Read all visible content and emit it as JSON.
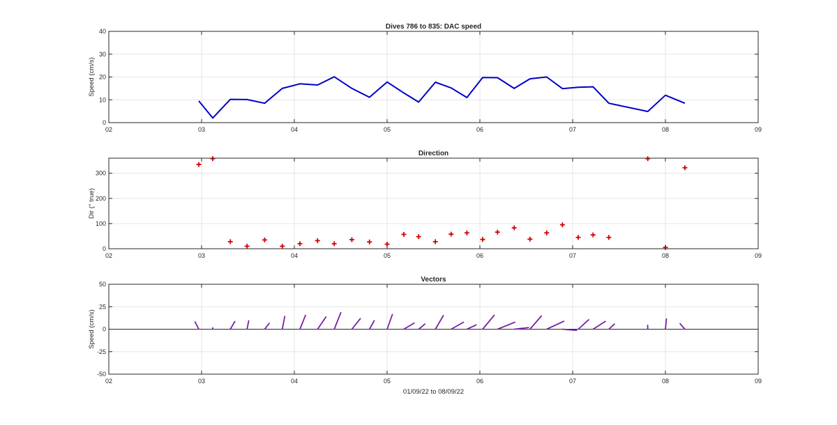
{
  "chart_data": [
    {
      "type": "line",
      "title": "Dives 786 to 835: DAC speed",
      "xlabel": "",
      "ylabel": "Speed (cm/s)",
      "xlim": [
        2,
        9
      ],
      "ylim": [
        0,
        40
      ],
      "xticks": [
        "02",
        "03",
        "04",
        "05",
        "06",
        "07",
        "08",
        "09"
      ],
      "yticks": [
        "0",
        "10",
        "20",
        "30",
        "40"
      ],
      "grid": true,
      "color": "#0000c8",
      "x": [
        2.97,
        3.12,
        3.31,
        3.49,
        3.68,
        3.87,
        4.06,
        4.25,
        4.43,
        4.62,
        4.81,
        5.0,
        5.18,
        5.34,
        5.52,
        5.69,
        5.86,
        6.03,
        6.19,
        6.37,
        6.54,
        6.72,
        6.89,
        7.06,
        7.22,
        7.39,
        7.81,
        8.0,
        8.21
      ],
      "y": [
        9.5,
        2.0,
        10.2,
        10.1,
        8.5,
        15.0,
        17.0,
        16.5,
        20.1,
        15.0,
        11.1,
        17.8,
        13.0,
        9.0,
        17.7,
        15.2,
        11.0,
        19.8,
        19.7,
        15.0,
        19.2,
        20.0,
        14.9,
        15.5,
        15.7,
        8.5,
        4.9,
        12.0,
        8.5
      ]
    },
    {
      "type": "scatter",
      "title": "Direction",
      "xlabel": "",
      "ylabel": "Dir (° true)",
      "xlim": [
        2,
        9
      ],
      "ylim": [
        0,
        360
      ],
      "xticks": [
        "02",
        "03",
        "04",
        "05",
        "06",
        "07",
        "08",
        "09"
      ],
      "yticks": [
        "0",
        "100",
        "200",
        "300"
      ],
      "grid": true,
      "color": "#d40000",
      "marker": "+",
      "x": [
        2.97,
        3.12,
        3.31,
        3.49,
        3.68,
        3.87,
        4.06,
        4.25,
        4.43,
        4.62,
        4.81,
        5.0,
        5.18,
        5.34,
        5.52,
        5.69,
        5.86,
        6.03,
        6.19,
        6.37,
        6.54,
        6.72,
        6.89,
        7.06,
        7.22,
        7.39,
        7.81,
        8.0,
        8.21
      ],
      "y": [
        335,
        358,
        28,
        10,
        35,
        10,
        20,
        32,
        20,
        36,
        27,
        18,
        57,
        48,
        28,
        58,
        63,
        37,
        66,
        83,
        38,
        63,
        95,
        45,
        55,
        45,
        358,
        5,
        322
      ]
    },
    {
      "type": "line",
      "title": "Vectors",
      "xlabel": "01/09/22 to 08/09/22",
      "ylabel": "Speed (cm/s)",
      "xlim": [
        2,
        9
      ],
      "ylim": [
        -50,
        50
      ],
      "xticks": [
        "02",
        "03",
        "04",
        "05",
        "06",
        "07",
        "08",
        "09"
      ],
      "yticks": [
        "-50",
        "-25",
        "0",
        "25",
        "50"
      ],
      "grid": true,
      "color": "#7a1fa8",
      "x": [
        2.97,
        3.12,
        3.31,
        3.49,
        3.68,
        3.87,
        4.06,
        4.25,
        4.43,
        4.62,
        4.81,
        5.0,
        5.18,
        5.34,
        5.52,
        5.69,
        5.86,
        6.03,
        6.19,
        6.37,
        6.54,
        6.72,
        6.89,
        7.06,
        7.22,
        7.39,
        7.81,
        8.0,
        8.21
      ],
      "speed": [
        9.5,
        2.0,
        10.2,
        10.1,
        8.5,
        15.0,
        17.0,
        16.5,
        20.1,
        15.0,
        11.1,
        17.8,
        13.0,
        9.0,
        17.7,
        15.2,
        11.0,
        19.8,
        19.7,
        15.0,
        19.2,
        20.0,
        14.9,
        15.5,
        15.7,
        8.5,
        4.9,
        12.0,
        8.5
      ],
      "direction": [
        335,
        358,
        28,
        10,
        35,
        10,
        20,
        32,
        20,
        36,
        27,
        18,
        57,
        48,
        28,
        58,
        63,
        37,
        66,
        83,
        38,
        63,
        95,
        45,
        55,
        45,
        358,
        5,
        322
      ]
    }
  ]
}
